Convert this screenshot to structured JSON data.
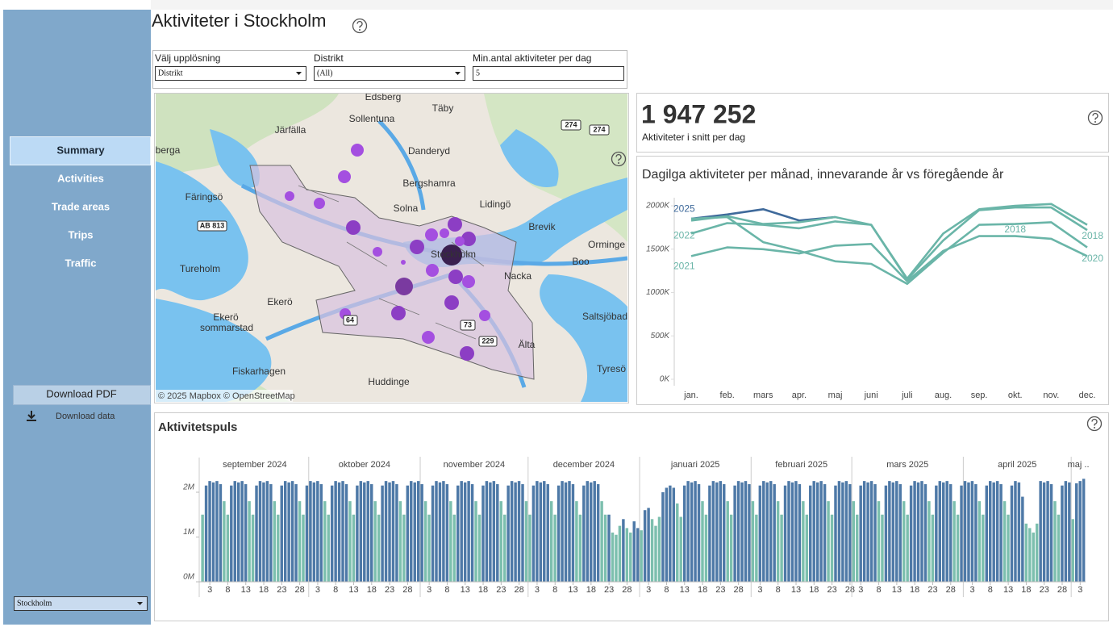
{
  "sidebar": {
    "nav": [
      "Summary",
      "Activities",
      "Trade areas",
      "Trips",
      "Traffic"
    ],
    "selected": "Summary",
    "download_pdf": "Download PDF",
    "download_data": "Download data",
    "city_select": "Stockholm"
  },
  "header": {
    "title": "Aktiviteter i Stockholm"
  },
  "filters": [
    {
      "label": "Välj upplösning",
      "value": "Distrikt"
    },
    {
      "label": "Distrikt",
      "value": "(All)"
    },
    {
      "label": "Min.antal aktiviteter per dag",
      "value": "5"
    }
  ],
  "map": {
    "places": [
      "Edsberg",
      "Täby",
      "Järfälla",
      "Sollentuna",
      "Danderyd",
      "berga",
      "Bergshamra",
      "Färingsö",
      "Solna",
      "Lidingö",
      "Brevik",
      "Orminge",
      "Stockholm",
      "Boo",
      "Tureholm",
      "Nacka",
      "Ekerö",
      "Ekerö",
      "sommarstad",
      "Saltsjöbad",
      "Älta",
      "Fiskarhagen",
      "Huddinge",
      "Tyresö"
    ],
    "roads": [
      "274",
      "274",
      "AB 813",
      "64",
      "73",
      "229"
    ],
    "attribution": "© 2025 Mapbox © OpenStreetMap"
  },
  "kpi": {
    "value": "1 947 252",
    "label": "Aktiviteter i snitt per dag"
  },
  "chart_data": [
    {
      "type": "line",
      "title": "Dagilga aktiviteter per månad, innevarande år vs föregående år",
      "categories": [
        "jan.",
        "feb.",
        "mars",
        "apr.",
        "maj",
        "juni",
        "juli",
        "aug.",
        "sep.",
        "okt.",
        "nov.",
        "dec."
      ],
      "series": [
        {
          "name": "2025",
          "color": "#3f6a9b",
          "values": [
            1850000,
            1900000,
            1960000,
            1830000,
            1870000,
            null,
            null,
            null,
            null,
            null,
            null,
            null
          ]
        },
        {
          "name": "2022",
          "color": "#6ab5a8",
          "values": [
            1680000,
            1800000,
            1780000,
            1740000,
            1820000,
            1780000,
            1150000,
            1600000,
            1950000,
            1980000,
            1980000,
            1720000
          ]
        },
        {
          "name": "2021",
          "color": "#6ab5a8",
          "values": [
            1420000,
            1520000,
            1500000,
            1450000,
            1540000,
            1560000,
            1130000,
            1480000,
            1650000,
            1650000,
            1620000,
            1420000
          ]
        },
        {
          "name": "2018",
          "color": "#6ab5a8",
          "values": [
            1830000,
            1880000,
            1790000,
            1810000,
            1870000,
            1780000,
            1160000,
            1680000,
            1960000,
            2000000,
            2020000,
            1780000
          ]
        },
        {
          "name": "2020",
          "color": "#6ab5a8",
          "values": [
            1850000,
            1870000,
            1580000,
            1480000,
            1360000,
            1330000,
            1100000,
            1460000,
            1780000,
            1790000,
            1810000,
            1520000
          ]
        }
      ],
      "annotations": [
        "2018"
      ],
      "ylim": [
        0,
        2100000
      ],
      "yticks": [
        {
          "value": 0,
          "label": "0K"
        },
        {
          "value": 500000,
          "label": "500K"
        },
        {
          "value": 1000000,
          "label": "1000K"
        },
        {
          "value": 1500000,
          "label": "1500K"
        },
        {
          "value": 2000000,
          "label": "2000K"
        }
      ],
      "grid": false
    },
    {
      "type": "bar",
      "title": "Aktivitetspuls",
      "colors": [
        "#4e79a7",
        "#7cbfae"
      ],
      "ylim": [
        0,
        2500000
      ],
      "yticks": [
        {
          "value": 0,
          "label": "0M"
        },
        {
          "value": 1000000,
          "label": "1M"
        },
        {
          "value": 2000000,
          "label": "2M"
        }
      ],
      "months": [
        {
          "label": "september 2024",
          "day_ticks": [
            3,
            8,
            13,
            18,
            23,
            28
          ],
          "values": [
            1500000,
            2150000,
            2250000,
            2220000,
            2250000,
            2180000,
            1800000,
            1500000,
            2150000,
            2250000,
            2220000,
            2250000,
            2180000,
            1800000,
            1500000,
            2150000,
            2250000,
            2220000,
            2250000,
            2180000,
            1800000,
            1500000,
            2150000,
            2250000,
            2220000,
            2250000,
            2180000,
            1800000,
            1500000,
            2150000
          ],
          "shade": [
            1,
            0,
            0,
            0,
            0,
            0,
            1,
            1,
            0,
            0,
            0,
            0,
            0,
            1,
            1,
            0,
            0,
            0,
            0,
            0,
            1,
            1,
            0,
            0,
            0,
            0,
            0,
            1,
            1,
            0
          ]
        },
        {
          "label": "oktober 2024",
          "day_ticks": [
            3,
            8,
            13,
            18,
            23,
            28
          ],
          "values": [
            2250000,
            2220000,
            2250000,
            2180000,
            1800000,
            1500000,
            2150000,
            2250000,
            2220000,
            2250000,
            2180000,
            1800000,
            1500000,
            2150000,
            2250000,
            2220000,
            2250000,
            2180000,
            1800000,
            1500000,
            2150000,
            2250000,
            2220000,
            2250000,
            2180000,
            1800000,
            1500000,
            2150000,
            2250000,
            2220000,
            2250000
          ],
          "shade": [
            0,
            0,
            0,
            0,
            1,
            1,
            0,
            0,
            0,
            0,
            0,
            1,
            1,
            0,
            0,
            0,
            0,
            0,
            1,
            1,
            0,
            0,
            0,
            0,
            0,
            1,
            1,
            0,
            0,
            0,
            0
          ]
        },
        {
          "label": "november 2024",
          "day_ticks": [
            3,
            8,
            13,
            18,
            23,
            28
          ],
          "values": [
            2180000,
            1800000,
            1500000,
            2150000,
            2250000,
            2220000,
            2250000,
            2180000,
            1800000,
            1500000,
            2150000,
            2250000,
            2220000,
            2250000,
            2180000,
            1800000,
            1500000,
            2150000,
            2250000,
            2220000,
            2250000,
            2180000,
            1800000,
            1500000,
            2150000,
            2250000,
            2220000,
            2250000,
            2180000,
            1800000
          ],
          "shade": [
            0,
            1,
            1,
            0,
            0,
            0,
            0,
            0,
            1,
            1,
            0,
            0,
            0,
            0,
            0,
            1,
            1,
            0,
            0,
            0,
            0,
            0,
            1,
            1,
            0,
            0,
            0,
            0,
            0,
            1
          ]
        },
        {
          "label": "december 2024",
          "day_ticks": [
            3,
            8,
            13,
            18,
            23,
            28
          ],
          "values": [
            1500000,
            2150000,
            2250000,
            2220000,
            2250000,
            2180000,
            1800000,
            1500000,
            2150000,
            2250000,
            2220000,
            2250000,
            2180000,
            1800000,
            1500000,
            2150000,
            2250000,
            2220000,
            2250000,
            2180000,
            1800000,
            1500000,
            1500000,
            1100000,
            1050000,
            1250000,
            1400000,
            1200000,
            1100000,
            1350000,
            1200000
          ],
          "shade": [
            1,
            0,
            0,
            0,
            0,
            0,
            1,
            1,
            0,
            0,
            0,
            0,
            0,
            1,
            1,
            0,
            0,
            0,
            0,
            0,
            1,
            1,
            0,
            1,
            1,
            1,
            0,
            1,
            1,
            0,
            0
          ]
        },
        {
          "label": "januari 2025",
          "day_ticks": [
            3,
            8,
            13,
            18,
            23,
            28
          ],
          "values": [
            1150000,
            1600000,
            1650000,
            1400000,
            1250000,
            1450000,
            2000000,
            2100000,
            2150000,
            2100000,
            1750000,
            1450000,
            2150000,
            2250000,
            2220000,
            2250000,
            2180000,
            1800000,
            1500000,
            2150000,
            2250000,
            2220000,
            2250000,
            2180000,
            1800000,
            1500000,
            2150000,
            2250000,
            2220000,
            2250000,
            2180000
          ],
          "shade": [
            1,
            0,
            0,
            1,
            1,
            1,
            0,
            0,
            0,
            0,
            1,
            1,
            0,
            0,
            0,
            0,
            0,
            1,
            1,
            0,
            0,
            0,
            0,
            0,
            1,
            1,
            0,
            0,
            0,
            0,
            0
          ]
        },
        {
          "label": "februari 2025",
          "day_ticks": [
            3,
            8,
            13,
            18,
            23,
            28
          ],
          "values": [
            1800000,
            1500000,
            2150000,
            2250000,
            2220000,
            2250000,
            2180000,
            1800000,
            1500000,
            2150000,
            2250000,
            2220000,
            2250000,
            2180000,
            1800000,
            1500000,
            2150000,
            2250000,
            2220000,
            2250000,
            2180000,
            1800000,
            1500000,
            2150000,
            2250000,
            2220000,
            2250000,
            2180000
          ],
          "shade": [
            1,
            1,
            0,
            0,
            0,
            0,
            0,
            1,
            1,
            0,
            0,
            0,
            0,
            0,
            1,
            1,
            0,
            0,
            0,
            0,
            0,
            1,
            1,
            0,
            0,
            0,
            0,
            0
          ]
        },
        {
          "label": "mars 2025",
          "day_ticks": [
            3,
            8,
            13,
            18,
            23,
            28
          ],
          "values": [
            1800000,
            1500000,
            2150000,
            2250000,
            2220000,
            2250000,
            2180000,
            1800000,
            1500000,
            2150000,
            2250000,
            2220000,
            2250000,
            2180000,
            1800000,
            1500000,
            2150000,
            2250000,
            2220000,
            2250000,
            2180000,
            1800000,
            1500000,
            2150000,
            2250000,
            2220000,
            2250000,
            2180000,
            1800000,
            1500000,
            2150000
          ],
          "shade": [
            1,
            1,
            0,
            0,
            0,
            0,
            0,
            1,
            1,
            0,
            0,
            0,
            0,
            0,
            1,
            1,
            0,
            0,
            0,
            0,
            0,
            1,
            1,
            0,
            0,
            0,
            0,
            0,
            1,
            1,
            0
          ]
        },
        {
          "label": "april 2025",
          "day_ticks": [
            3,
            8,
            13,
            18,
            23,
            28
          ],
          "values": [
            2250000,
            2220000,
            2250000,
            2180000,
            1800000,
            1500000,
            2150000,
            2250000,
            2220000,
            2250000,
            2180000,
            1800000,
            1500000,
            2150000,
            2250000,
            2220000,
            1900000,
            1300000,
            1200000,
            1100000,
            1300000,
            2250000,
            2220000,
            2250000,
            2180000,
            1800000,
            1500000,
            2150000,
            2250000,
            2220000
          ],
          "shade": [
            0,
            0,
            0,
            0,
            1,
            1,
            0,
            0,
            0,
            0,
            0,
            1,
            1,
            0,
            0,
            0,
            0,
            1,
            1,
            1,
            1,
            0,
            0,
            0,
            0,
            1,
            1,
            0,
            0,
            0
          ]
        },
        {
          "label": "maj ..",
          "day_ticks": [
            3
          ],
          "values": [
            1400000,
            2200000,
            2250000,
            2300000
          ],
          "shade": [
            1,
            0,
            0,
            0
          ]
        }
      ]
    }
  ]
}
